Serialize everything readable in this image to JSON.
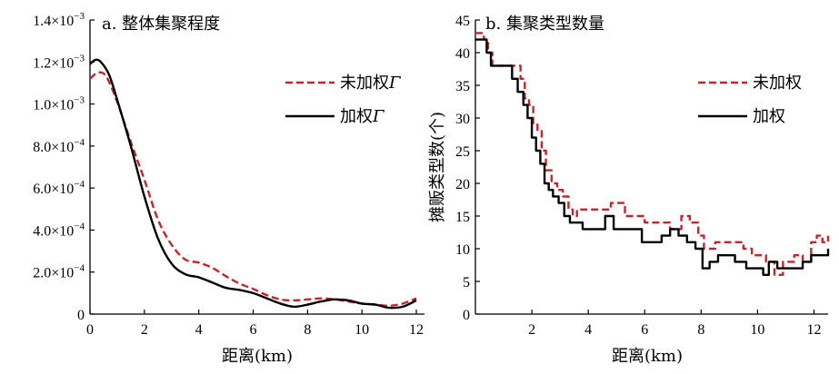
{
  "chart_data": [
    {
      "type": "line",
      "title": "a. 整体集聚程度",
      "xlabel": "距离(km)",
      "ylabel": "",
      "xlim": [
        0,
        12.3
      ],
      "ylim": [
        0,
        0.0014
      ],
      "xticks": [
        0,
        2,
        4,
        6,
        8,
        10,
        12
      ],
      "yticks": [
        0,
        0.0002,
        0.0004,
        0.0006,
        0.0008,
        0.001,
        0.0012,
        0.0014
      ],
      "ytick_labels": [
        {
          "mant": "0",
          "exp": ""
        },
        {
          "mant": "2.0×10",
          "exp": "−4"
        },
        {
          "mant": "4.0×10",
          "exp": "−4"
        },
        {
          "mant": "6.0×10",
          "exp": "−4"
        },
        {
          "mant": "8.0×10",
          "exp": "−4"
        },
        {
          "mant": "1.0×10",
          "exp": "−3"
        },
        {
          "mant": "1.2×10",
          "exp": "−3"
        },
        {
          "mant": "1.4×10",
          "exp": "−3"
        }
      ],
      "legend_position": "right",
      "series": [
        {
          "name": "未加权",
          "name_suffix": "Γ",
          "color": "#c0272d",
          "style": "dashed",
          "x": [
            0,
            0.3,
            0.6,
            1.0,
            1.5,
            2.0,
            2.5,
            3.0,
            3.5,
            4.0,
            4.5,
            5.0,
            5.5,
            6.0,
            6.5,
            7.0,
            7.5,
            8.0,
            8.5,
            9.0,
            9.5,
            10.0,
            10.5,
            11.0,
            11.5,
            12.0
          ],
          "y": [
            0.00112,
            0.00115,
            0.00113,
            0.00101,
            0.00082,
            0.00064,
            0.00045,
            0.00033,
            0.00026,
            0.000245,
            0.00022,
            0.00018,
            0.000145,
            0.00012,
            9e-05,
            7e-05,
            6.5e-05,
            7e-05,
            7.5e-05,
            7e-05,
            6e-05,
            5e-05,
            4.5e-05,
            4e-05,
            5e-05,
            7.5e-05
          ]
        },
        {
          "name": "加权",
          "name_suffix": "Γ",
          "color": "#000000",
          "style": "solid",
          "x": [
            0,
            0.2,
            0.4,
            0.7,
            1.0,
            1.5,
            2.0,
            2.5,
            3.0,
            3.5,
            4.0,
            4.5,
            5.0,
            5.5,
            6.0,
            6.5,
            7.0,
            7.5,
            8.0,
            8.5,
            9.0,
            9.5,
            10.0,
            10.5,
            11.0,
            11.5,
            12.0
          ],
          "y": [
            0.00119,
            0.00121,
            0.0012,
            0.00114,
            0.00102,
            0.0008,
            0.00056,
            0.00036,
            0.00024,
            0.00019,
            0.000175,
            0.00015,
            0.000125,
            0.000115,
            0.0001,
            7.5e-05,
            5e-05,
            3.5e-05,
            4.5e-05,
            6e-05,
            7e-05,
            6.5e-05,
            5e-05,
            4.5e-05,
            3e-05,
            3.5e-05,
            6.5e-05
          ]
        }
      ]
    },
    {
      "type": "line",
      "title": "b. 集聚类型数量",
      "xlabel": "距离(km)",
      "ylabel": "摊贩类型数(个)",
      "xlim": [
        0,
        12.5
      ],
      "ylim": [
        0,
        45
      ],
      "xticks": [
        2,
        4,
        6,
        8,
        10,
        12
      ],
      "yticks": [
        0,
        5,
        10,
        15,
        20,
        25,
        30,
        35,
        40,
        45
      ],
      "legend_position": "right",
      "series": [
        {
          "name": "未加权",
          "color": "#c0272d",
          "style": "dashed",
          "x": [
            0,
            0.3,
            0.45,
            0.6,
            1.4,
            1.6,
            1.75,
            1.9,
            2.05,
            2.2,
            2.35,
            2.5,
            2.7,
            2.9,
            3.1,
            3.3,
            3.45,
            3.6,
            3.9,
            4.3,
            4.8,
            5.3,
            5.6,
            6.0,
            6.3,
            6.6,
            6.9,
            7.3,
            7.6,
            7.9,
            8.1,
            8.5,
            9.1,
            9.5,
            9.8,
            10.0,
            10.3,
            10.6,
            10.9,
            11.3,
            11.6,
            11.9,
            12.1,
            12.3,
            12.5
          ],
          "y": [
            43,
            42,
            40,
            38,
            38,
            36,
            33,
            32,
            29,
            28,
            25,
            22,
            20,
            19,
            18,
            16,
            15,
            16,
            16,
            16,
            17,
            15,
            15,
            14,
            14,
            14,
            13,
            15,
            14,
            12,
            10,
            11,
            11,
            10,
            9,
            9,
            8,
            6,
            8,
            9,
            8,
            11,
            12,
            11,
            12
          ]
        },
        {
          "name": "加权",
          "color": "#000000",
          "style": "solid",
          "x": [
            0,
            0.4,
            0.55,
            0.7,
            1.3,
            1.5,
            1.7,
            1.85,
            2.0,
            2.15,
            2.3,
            2.45,
            2.6,
            2.75,
            2.95,
            3.15,
            3.35,
            3.55,
            3.8,
            4.3,
            4.6,
            4.9,
            5.4,
            5.9,
            6.3,
            6.6,
            6.9,
            7.2,
            7.5,
            7.8,
            8.05,
            8.3,
            8.6,
            9.2,
            9.6,
            10.0,
            10.2,
            10.4,
            10.7,
            11.1,
            11.6,
            11.9,
            12.3,
            12.5
          ],
          "y": [
            42,
            40,
            38,
            38,
            36,
            34,
            32,
            30,
            27,
            25,
            23,
            20,
            19,
            18,
            17,
            15,
            14,
            14,
            13,
            13,
            15,
            13,
            13,
            11,
            11,
            12,
            13,
            12,
            11,
            10,
            7,
            8,
            9,
            8,
            7,
            7,
            6,
            8,
            7,
            7,
            8,
            9,
            9,
            10
          ]
        }
      ]
    }
  ]
}
